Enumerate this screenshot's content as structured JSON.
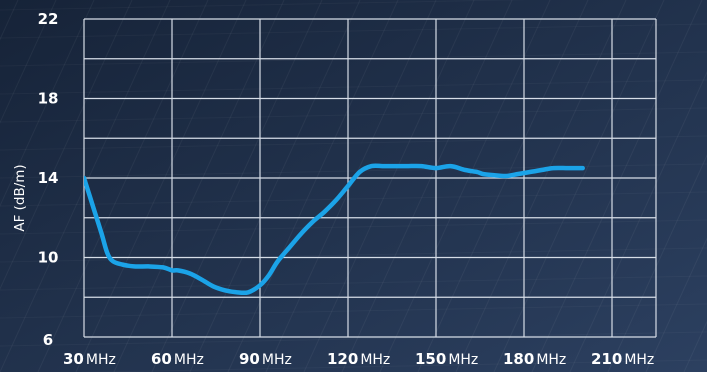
{
  "chart_data": {
    "type": "line",
    "ylabel": "AF (dB/m)",
    "xlabel": "",
    "xlim": [
      30,
      225
    ],
    "ylim": [
      6,
      22
    ],
    "x_ticks": [
      {
        "value": "30",
        "unit": "MHz"
      },
      {
        "value": "60",
        "unit": "MHz"
      },
      {
        "value": "90",
        "unit": "MHz"
      },
      {
        "value": "120",
        "unit": "MHz"
      },
      {
        "value": "150",
        "unit": "MHz"
      },
      {
        "value": "180",
        "unit": "MHz"
      },
      {
        "value": "210",
        "unit": "MHz"
      }
    ],
    "y_ticks": [
      "6",
      "10",
      "14",
      "18",
      "22"
    ],
    "grid": true,
    "series": [
      {
        "color": "#1ba3e8",
        "x": [
          30,
          33,
          36,
          38,
          40,
          43,
          47,
          52,
          57,
          60,
          62,
          66,
          70,
          74,
          78,
          82,
          86,
          90,
          93,
          96,
          100,
          104,
          108,
          112,
          116,
          120,
          124,
          128,
          132,
          136,
          140,
          145,
          150,
          155,
          160,
          164,
          166,
          169,
          174,
          178,
          182,
          186,
          190,
          195,
          200
        ],
        "y": [
          14.0,
          12.6,
          11.2,
          10.2,
          9.8,
          9.65,
          9.55,
          9.55,
          9.5,
          9.35,
          9.35,
          9.2,
          8.9,
          8.55,
          8.35,
          8.25,
          8.25,
          8.6,
          9.1,
          9.8,
          10.5,
          11.2,
          11.8,
          12.3,
          12.9,
          13.6,
          14.3,
          14.6,
          14.6,
          14.6,
          14.6,
          14.6,
          14.5,
          14.6,
          14.4,
          14.3,
          14.2,
          14.15,
          14.1,
          14.2,
          14.3,
          14.4,
          14.5,
          14.5,
          14.5
        ]
      }
    ]
  }
}
